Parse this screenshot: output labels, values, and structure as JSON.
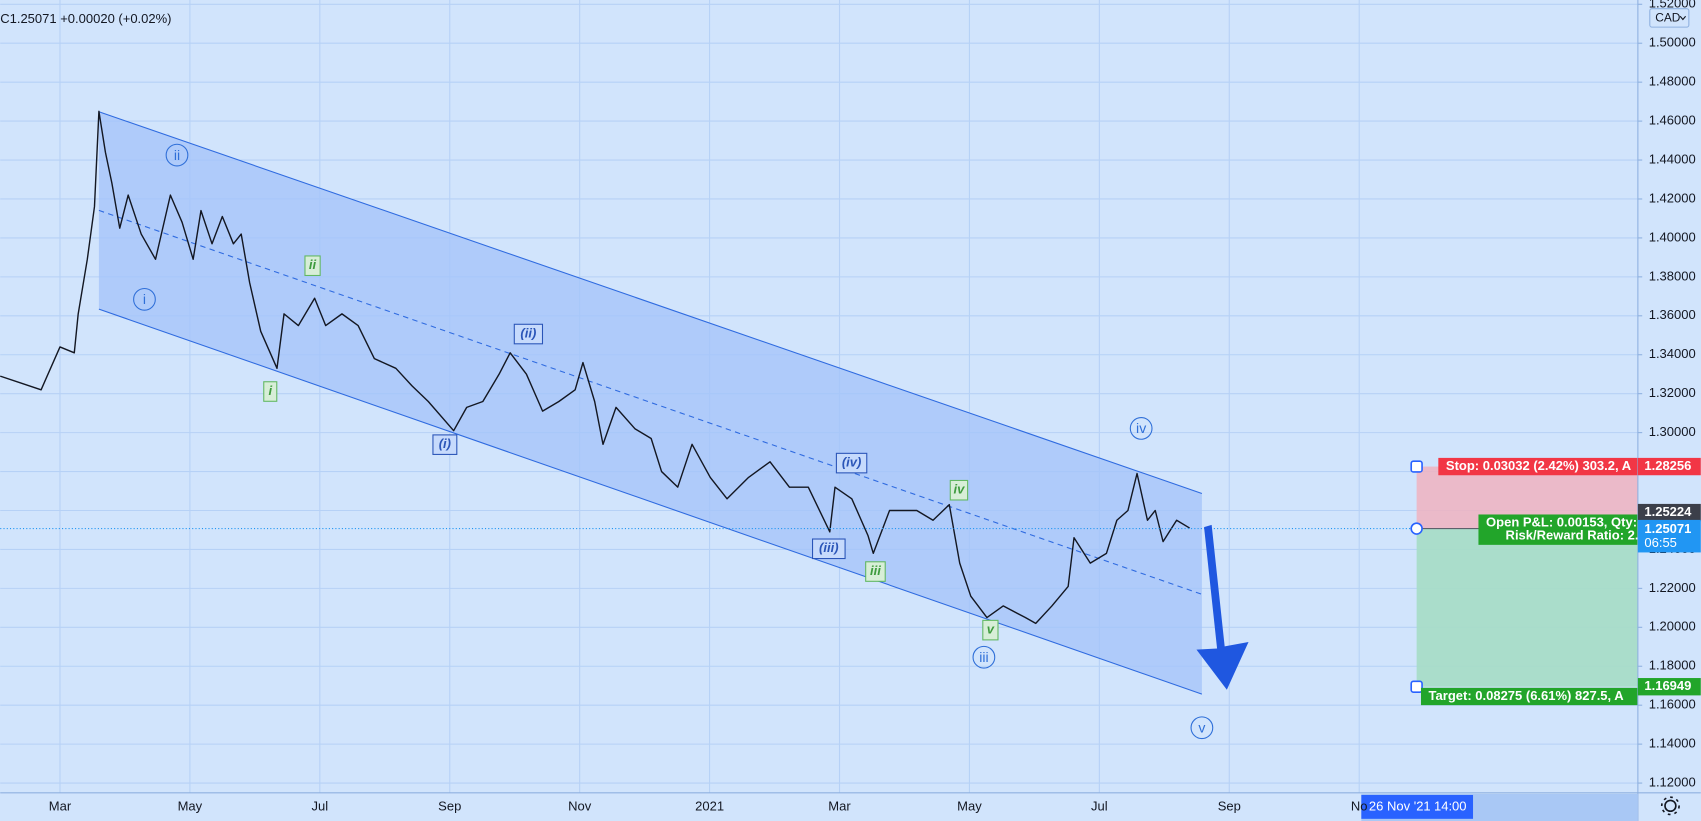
{
  "chart_data": {
    "type": "line",
    "legend_text": "C1.25071 +0.00020 (+0.02%)",
    "currency": "CAD",
    "color": "#131722",
    "grid": true,
    "x": [
      1.08,
      1.71,
      2.0,
      2.22,
      2.28,
      2.42,
      2.53,
      2.6,
      2.7,
      2.8,
      2.92,
      3.05,
      3.25,
      3.47,
      3.7,
      3.88,
      4.05,
      4.17,
      4.34,
      4.5,
      4.67,
      4.79,
      4.92,
      5.09,
      5.34,
      5.45,
      5.67,
      5.92,
      6.09,
      6.34,
      6.59,
      6.84,
      7.17,
      7.42,
      7.67,
      8.06,
      8.26,
      8.51,
      8.76,
      8.93,
      9.18,
      9.43,
      9.68,
      9.93,
      10.05,
      10.23,
      10.36,
      10.56,
      10.85,
      11.1,
      11.26,
      11.51,
      11.73,
      12.01,
      12.27,
      12.6,
      12.93,
      13.23,
      13.52,
      13.85,
      13.93,
      14.19,
      14.44,
      14.52,
      14.77,
      15.19,
      15.44,
      15.69,
      15.85,
      16.02,
      16.27,
      16.52,
      16.86,
      17.02,
      17.27,
      17.52,
      17.61,
      17.86,
      18.11,
      18.27,
      18.44,
      18.58,
      18.74,
      18.86,
      18.98,
      19.19,
      19.39
    ],
    "values": [
      1.329,
      1.322,
      1.344,
      1.341,
      1.361,
      1.389,
      1.416,
      1.465,
      1.444,
      1.428,
      1.405,
      1.422,
      1.402,
      1.389,
      1.422,
      1.408,
      1.389,
      1.414,
      1.397,
      1.411,
      1.397,
      1.402,
      1.377,
      1.352,
      1.333,
      1.361,
      1.355,
      1.369,
      1.355,
      1.361,
      1.355,
      1.338,
      1.333,
      1.324,
      1.316,
      1.301,
      1.313,
      1.316,
      1.33,
      1.341,
      1.33,
      1.311,
      1.316,
      1.322,
      1.336,
      1.316,
      1.294,
      1.313,
      1.302,
      1.297,
      1.28,
      1.272,
      1.294,
      1.277,
      1.266,
      1.277,
      1.285,
      1.272,
      1.272,
      1.249,
      1.272,
      1.266,
      1.247,
      1.238,
      1.26,
      1.26,
      1.255,
      1.263,
      1.233,
      1.216,
      1.205,
      1.211,
      1.205,
      1.202,
      1.211,
      1.221,
      1.246,
      1.233,
      1.238,
      1.255,
      1.26,
      1.279,
      1.255,
      1.26,
      1.244,
      1.255,
      1.251
    ],
    "xlim": [
      1.08,
      26.29
    ],
    "xticks": [
      {
        "value": 2,
        "label": "Mar"
      },
      {
        "value": 4,
        "label": "May"
      },
      {
        "value": 6,
        "label": "Jul"
      },
      {
        "value": 8,
        "label": "Sep"
      },
      {
        "value": 10,
        "label": "Nov"
      },
      {
        "value": 12,
        "label": "2021"
      },
      {
        "value": 14,
        "label": "Mar"
      },
      {
        "value": 16,
        "label": "May"
      },
      {
        "value": 18,
        "label": "Jul"
      },
      {
        "value": 20,
        "label": "Sep"
      },
      {
        "value": 22,
        "label": "No"
      }
    ],
    "ylim": [
      1.115,
      1.5222
    ],
    "yticks": [
      {
        "value": 1.12,
        "label": "1.12000"
      },
      {
        "value": 1.14,
        "label": "1.14000"
      },
      {
        "value": 1.16,
        "label": "1.16000"
      },
      {
        "value": 1.18,
        "label": "1.18000"
      },
      {
        "value": 1.2,
        "label": "1.20000"
      },
      {
        "value": 1.22,
        "label": "1.22000"
      },
      {
        "value": 1.24,
        "label": "1.24000"
      },
      {
        "value": 1.26,
        "label": "1.26000"
      },
      {
        "value": 1.28,
        "label": "1.28000"
      },
      {
        "value": 1.3,
        "label": "1.30000"
      },
      {
        "value": 1.32,
        "label": "1.32000"
      },
      {
        "value": 1.34,
        "label": "1.34000"
      },
      {
        "value": 1.36,
        "label": "1.36000"
      },
      {
        "value": 1.38,
        "label": "1.38000"
      },
      {
        "value": 1.4,
        "label": "1.40000"
      },
      {
        "value": 1.42,
        "label": "1.42000"
      },
      {
        "value": 1.44,
        "label": "1.44000"
      },
      {
        "value": 1.46,
        "label": "1.46000"
      },
      {
        "value": 1.48,
        "label": "1.48000"
      },
      {
        "value": 1.5,
        "label": "1.50000"
      },
      {
        "value": 1.52,
        "label": "1.52000"
      }
    ],
    "last_price": 1.25071,
    "countdown": "06:55",
    "prev_tag": 1.25224,
    "position": {
      "stop": 1.28256,
      "target": 1.16949,
      "stop_label": "Stop: 0.03032 (2.42%) 303.2, A",
      "pnl_label": "Open P&L: 0.00153, Qty:",
      "rr_label": "Risk/Reward Ratio: 2.",
      "target_label": "Target: 0.08275 (6.61%) 827.5, A"
    },
    "crosshair_date": "26 Nov '21",
    "crosshair_time": "14:00"
  },
  "waves": {
    "circle": [
      "i",
      "ii",
      "iii",
      "iv",
      "v"
    ],
    "minor": [
      "i",
      "ii",
      "iii",
      "iv",
      "v"
    ],
    "intermediate": [
      "(i)",
      "(ii)",
      "(iii)",
      "(iv)"
    ]
  }
}
